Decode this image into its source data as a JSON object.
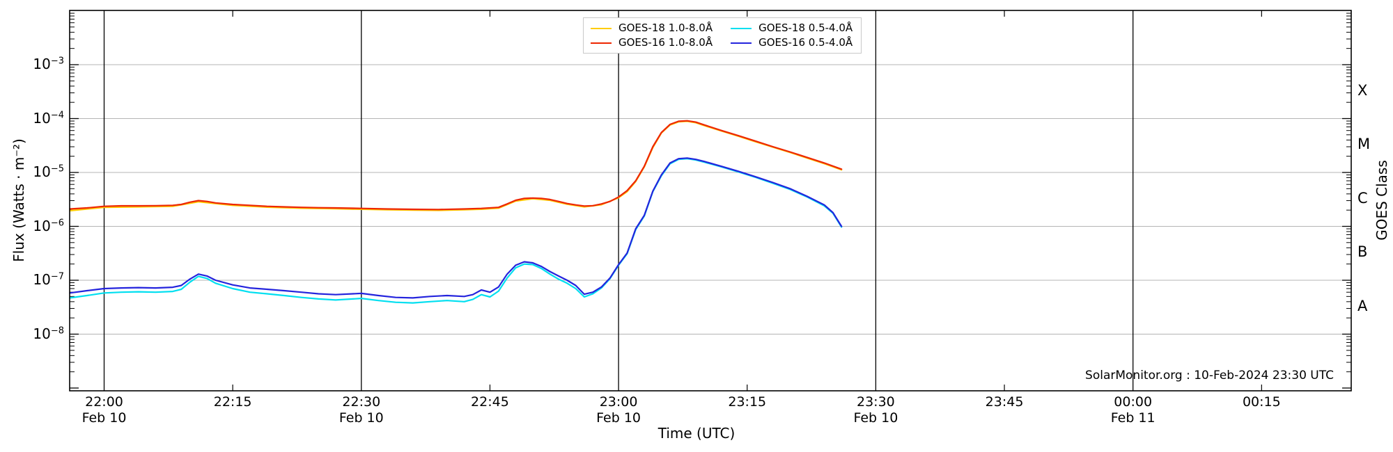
{
  "chart_data": {
    "type": "line",
    "title": "",
    "xlabel": "Time (UTC)",
    "ylabel_left": "Flux (Watts · m⁻²)",
    "ylabel_right": "GOES Class",
    "watermark": "SolarMonitor.org : 10-Feb-2024 23:30 UTC",
    "y_axis": {
      "scale": "log",
      "labeled_decades": [
        -3,
        -4,
        -5,
        -6,
        -7,
        -8
      ],
      "top_exponent": -2,
      "bottom_exponent": -9,
      "grid": true
    },
    "goes_class_letters": [
      {
        "label": "X",
        "between": [
          -4,
          -3
        ]
      },
      {
        "label": "M",
        "between": [
          -5,
          -4
        ]
      },
      {
        "label": "C",
        "between": [
          -6,
          -5
        ]
      },
      {
        "label": "B",
        "between": [
          -7,
          -6
        ]
      },
      {
        "label": "A",
        "between": [
          -8,
          -7
        ]
      }
    ],
    "x_axis": {
      "ticks": [
        {
          "time": "22:00",
          "date": "Feb 10"
        },
        {
          "time": "22:15"
        },
        {
          "time": "22:30",
          "date": "Feb 10"
        },
        {
          "time": "22:45"
        },
        {
          "time": "23:00",
          "date": "Feb 10"
        },
        {
          "time": "23:15"
        },
        {
          "time": "23:30",
          "date": "Feb 10"
        },
        {
          "time": "23:45"
        },
        {
          "time": "00:00",
          "date": "Feb 11"
        },
        {
          "time": "00:15"
        }
      ],
      "vertical_lines_at_major": true
    },
    "legend": {
      "columns": [
        [
          0,
          2
        ],
        [
          1,
          3
        ]
      ],
      "position": "top-center"
    },
    "series": [
      {
        "name": "GOES-18 1.0-8.0Å",
        "color": "#ffcc00",
        "points": [
          [
            "21:56",
            1.95e-06
          ],
          [
            "22:00",
            2.25e-06
          ],
          [
            "22:04",
            2.3e-06
          ],
          [
            "22:08",
            2.35e-06
          ],
          [
            "22:11",
            2.85e-06
          ],
          [
            "22:15",
            2.45e-06
          ],
          [
            "22:19",
            2.27e-06
          ],
          [
            "22:23",
            2.17e-06
          ],
          [
            "22:27",
            2.12e-06
          ],
          [
            "22:30",
            2.08e-06
          ],
          [
            "22:33",
            2.03e-06
          ],
          [
            "22:36",
            2e-06
          ],
          [
            "22:39",
            1.98e-06
          ],
          [
            "22:42",
            2.03e-06
          ],
          [
            "22:44",
            2.08e-06
          ],
          [
            "22:46",
            2.18e-06
          ],
          [
            "22:48",
            2.95e-06
          ],
          [
            "22:50",
            3.25e-06
          ],
          [
            "22:52",
            3.05e-06
          ],
          [
            "22:54",
            2.57e-06
          ],
          [
            "22:56",
            2.3e-06
          ],
          [
            "22:58",
            2.52e-06
          ],
          [
            "23:00",
            3.4e-06
          ],
          [
            "23:01",
            4.4e-06
          ],
          [
            "23:02",
            6.8e-06
          ],
          [
            "23:03",
            1.27e-05
          ],
          [
            "23:04",
            2.9e-05
          ],
          [
            "23:05",
            5.4e-05
          ],
          [
            "23:06",
            7.6e-05
          ],
          [
            "23:07",
            8.7e-05
          ],
          [
            "23:08",
            8.9e-05
          ],
          [
            "23:09",
            8.4e-05
          ],
          [
            "23:10",
            7.4e-05
          ],
          [
            "23:12",
            5.9e-05
          ],
          [
            "23:14",
            4.7e-05
          ],
          [
            "23:16",
            3.7e-05
          ],
          [
            "23:18",
            2.95e-05
          ],
          [
            "23:20",
            2.35e-05
          ],
          [
            "23:22",
            1.85e-05
          ],
          [
            "23:24",
            1.46e-05
          ],
          [
            "23:26",
            1.12e-05
          ]
        ]
      },
      {
        "name": "GOES-18 0.5-4.0Å",
        "color": "#00dff0",
        "points": [
          [
            "21:56",
            4.7e-08
          ],
          [
            "21:58",
            5.2e-08
          ],
          [
            "22:00",
            5.8e-08
          ],
          [
            "22:02",
            6e-08
          ],
          [
            "22:04",
            6.1e-08
          ],
          [
            "22:06",
            6e-08
          ],
          [
            "22:08",
            6.2e-08
          ],
          [
            "22:09",
            6.8e-08
          ],
          [
            "22:10",
            9.2e-08
          ],
          [
            "22:11",
            1.18e-07
          ],
          [
            "22:12",
            1.08e-07
          ],
          [
            "22:13",
            8.8e-08
          ],
          [
            "22:15",
            7e-08
          ],
          [
            "22:17",
            6e-08
          ],
          [
            "22:19",
            5.6e-08
          ],
          [
            "22:21",
            5.2e-08
          ],
          [
            "22:23",
            4.8e-08
          ],
          [
            "22:25",
            4.5e-08
          ],
          [
            "22:27",
            4.3e-08
          ],
          [
            "22:29",
            4.5e-08
          ],
          [
            "22:30",
            4.6e-08
          ],
          [
            "22:32",
            4.2e-08
          ],
          [
            "22:34",
            3.9e-08
          ],
          [
            "22:36",
            3.8e-08
          ],
          [
            "22:38",
            4e-08
          ],
          [
            "22:40",
            4.2e-08
          ],
          [
            "22:42",
            4e-08
          ],
          [
            "22:43",
            4.4e-08
          ],
          [
            "22:44",
            5.4e-08
          ],
          [
            "22:45",
            4.9e-08
          ],
          [
            "22:46",
            6.3e-08
          ],
          [
            "22:47",
            1.1e-07
          ],
          [
            "22:48",
            1.7e-07
          ],
          [
            "22:49",
            2e-07
          ],
          [
            "22:50",
            1.95e-07
          ],
          [
            "22:51",
            1.65e-07
          ],
          [
            "22:52",
            1.3e-07
          ],
          [
            "22:53",
            1.05e-07
          ],
          [
            "22:54",
            8.8e-08
          ],
          [
            "22:55",
            7e-08
          ],
          [
            "22:56",
            4.9e-08
          ],
          [
            "22:57",
            5.6e-08
          ],
          [
            "22:58",
            7.2e-08
          ],
          [
            "22:59",
            1.07e-07
          ],
          [
            "23:00",
            1.9e-07
          ],
          [
            "23:01",
            3.1e-07
          ],
          [
            "23:02",
            8.7e-07
          ],
          [
            "23:03",
            1.55e-06
          ],
          [
            "23:04",
            4.4e-06
          ],
          [
            "23:05",
            8.7e-06
          ],
          [
            "23:06",
            1.45e-05
          ],
          [
            "23:07",
            1.75e-05
          ],
          [
            "23:08",
            1.8e-05
          ],
          [
            "23:09",
            1.7e-05
          ],
          [
            "23:10",
            1.55e-05
          ],
          [
            "23:12",
            1.27e-05
          ],
          [
            "23:14",
            1.02e-05
          ],
          [
            "23:16",
            8.1e-06
          ],
          [
            "23:18",
            6.3e-06
          ],
          [
            "23:20",
            4.85e-06
          ],
          [
            "23:22",
            3.5e-06
          ],
          [
            "23:24",
            2.4e-06
          ],
          [
            "23:25",
            1.75e-06
          ],
          [
            "23:26",
            9.7e-07
          ]
        ]
      },
      {
        "name": "GOES-16 1.0-8.0Å",
        "color": "#ed2600",
        "points": [
          [
            "21:56",
            2.1e-06
          ],
          [
            "21:58",
            2.2e-06
          ],
          [
            "22:00",
            2.35e-06
          ],
          [
            "22:02",
            2.4e-06
          ],
          [
            "22:04",
            2.4e-06
          ],
          [
            "22:06",
            2.42e-06
          ],
          [
            "22:08",
            2.45e-06
          ],
          [
            "22:09",
            2.55e-06
          ],
          [
            "22:10",
            2.8e-06
          ],
          [
            "22:11",
            3e-06
          ],
          [
            "22:12",
            2.9e-06
          ],
          [
            "22:13",
            2.72e-06
          ],
          [
            "22:15",
            2.55e-06
          ],
          [
            "22:17",
            2.45e-06
          ],
          [
            "22:19",
            2.35e-06
          ],
          [
            "22:21",
            2.3e-06
          ],
          [
            "22:23",
            2.25e-06
          ],
          [
            "22:25",
            2.22e-06
          ],
          [
            "22:27",
            2.2e-06
          ],
          [
            "22:30",
            2.15e-06
          ],
          [
            "22:33",
            2.1e-06
          ],
          [
            "22:36",
            2.07e-06
          ],
          [
            "22:39",
            2.05e-06
          ],
          [
            "22:42",
            2.1e-06
          ],
          [
            "22:44",
            2.15e-06
          ],
          [
            "22:46",
            2.25e-06
          ],
          [
            "22:47",
            2.6e-06
          ],
          [
            "22:48",
            3.05e-06
          ],
          [
            "22:49",
            3.3e-06
          ],
          [
            "22:50",
            3.35e-06
          ],
          [
            "22:51",
            3.3e-06
          ],
          [
            "22:52",
            3.15e-06
          ],
          [
            "22:53",
            2.9e-06
          ],
          [
            "22:54",
            2.65e-06
          ],
          [
            "22:55",
            2.5e-06
          ],
          [
            "22:56",
            2.38e-06
          ],
          [
            "22:57",
            2.42e-06
          ],
          [
            "22:58",
            2.6e-06
          ],
          [
            "22:59",
            2.9e-06
          ],
          [
            "23:00",
            3.5e-06
          ],
          [
            "23:01",
            4.6e-06
          ],
          [
            "23:02",
            7e-06
          ],
          [
            "23:03",
            1.3e-05
          ],
          [
            "23:04",
            3e-05
          ],
          [
            "23:05",
            5.5e-05
          ],
          [
            "23:06",
            7.8e-05
          ],
          [
            "23:07",
            8.9e-05
          ],
          [
            "23:08",
            9.1e-05
          ],
          [
            "23:09",
            8.6e-05
          ],
          [
            "23:10",
            7.6e-05
          ],
          [
            "23:12",
            6e-05
          ],
          [
            "23:14",
            4.8e-05
          ],
          [
            "23:16",
            3.8e-05
          ],
          [
            "23:18",
            3e-05
          ],
          [
            "23:20",
            2.4e-05
          ],
          [
            "23:22",
            1.9e-05
          ],
          [
            "23:24",
            1.5e-05
          ],
          [
            "23:26",
            1.15e-05
          ]
        ]
      },
      {
        "name": "GOES-16 0.5-4.0Å",
        "color": "#2424dd",
        "points": [
          [
            "21:56",
            5.8e-08
          ],
          [
            "21:58",
            6.4e-08
          ],
          [
            "22:00",
            7e-08
          ],
          [
            "22:02",
            7.2e-08
          ],
          [
            "22:04",
            7.3e-08
          ],
          [
            "22:06",
            7.2e-08
          ],
          [
            "22:08",
            7.4e-08
          ],
          [
            "22:09",
            8e-08
          ],
          [
            "22:10",
            1.05e-07
          ],
          [
            "22:11",
            1.3e-07
          ],
          [
            "22:12",
            1.2e-07
          ],
          [
            "22:13",
            1e-07
          ],
          [
            "22:15",
            8.2e-08
          ],
          [
            "22:17",
            7.2e-08
          ],
          [
            "22:19",
            6.8e-08
          ],
          [
            "22:21",
            6.4e-08
          ],
          [
            "22:23",
            6e-08
          ],
          [
            "22:25",
            5.6e-08
          ],
          [
            "22:27",
            5.4e-08
          ],
          [
            "22:29",
            5.6e-08
          ],
          [
            "22:30",
            5.7e-08
          ],
          [
            "22:32",
            5.2e-08
          ],
          [
            "22:34",
            4.8e-08
          ],
          [
            "22:36",
            4.7e-08
          ],
          [
            "22:38",
            5e-08
          ],
          [
            "22:40",
            5.2e-08
          ],
          [
            "22:42",
            5e-08
          ],
          [
            "22:43",
            5.4e-08
          ],
          [
            "22:44",
            6.6e-08
          ],
          [
            "22:45",
            6e-08
          ],
          [
            "22:46",
            7.5e-08
          ],
          [
            "22:47",
            1.3e-07
          ],
          [
            "22:48",
            1.9e-07
          ],
          [
            "22:49",
            2.2e-07
          ],
          [
            "22:50",
            2.1e-07
          ],
          [
            "22:51",
            1.8e-07
          ],
          [
            "22:52",
            1.45e-07
          ],
          [
            "22:53",
            1.2e-07
          ],
          [
            "22:54",
            1e-07
          ],
          [
            "22:55",
            8e-08
          ],
          [
            "22:56",
            5.5e-08
          ],
          [
            "22:57",
            6e-08
          ],
          [
            "22:58",
            7.5e-08
          ],
          [
            "22:59",
            1.1e-07
          ],
          [
            "23:00",
            1.95e-07
          ],
          [
            "23:01",
            3.2e-07
          ],
          [
            "23:02",
            9e-07
          ],
          [
            "23:03",
            1.6e-06
          ],
          [
            "23:04",
            4.5e-06
          ],
          [
            "23:05",
            9e-06
          ],
          [
            "23:06",
            1.5e-05
          ],
          [
            "23:07",
            1.8e-05
          ],
          [
            "23:08",
            1.85e-05
          ],
          [
            "23:09",
            1.75e-05
          ],
          [
            "23:10",
            1.6e-05
          ],
          [
            "23:12",
            1.3e-05
          ],
          [
            "23:14",
            1.05e-05
          ],
          [
            "23:16",
            8.3e-06
          ],
          [
            "23:18",
            6.5e-06
          ],
          [
            "23:20",
            5e-06
          ],
          [
            "23:22",
            3.6e-06
          ],
          [
            "23:24",
            2.5e-06
          ],
          [
            "23:25",
            1.8e-06
          ],
          [
            "23:26",
            1e-06
          ]
        ]
      }
    ],
    "style": {
      "grid_color": "#b4b4b4",
      "frame_color": "#000000",
      "vline_color": "#000000",
      "background": "#ffffff"
    }
  }
}
